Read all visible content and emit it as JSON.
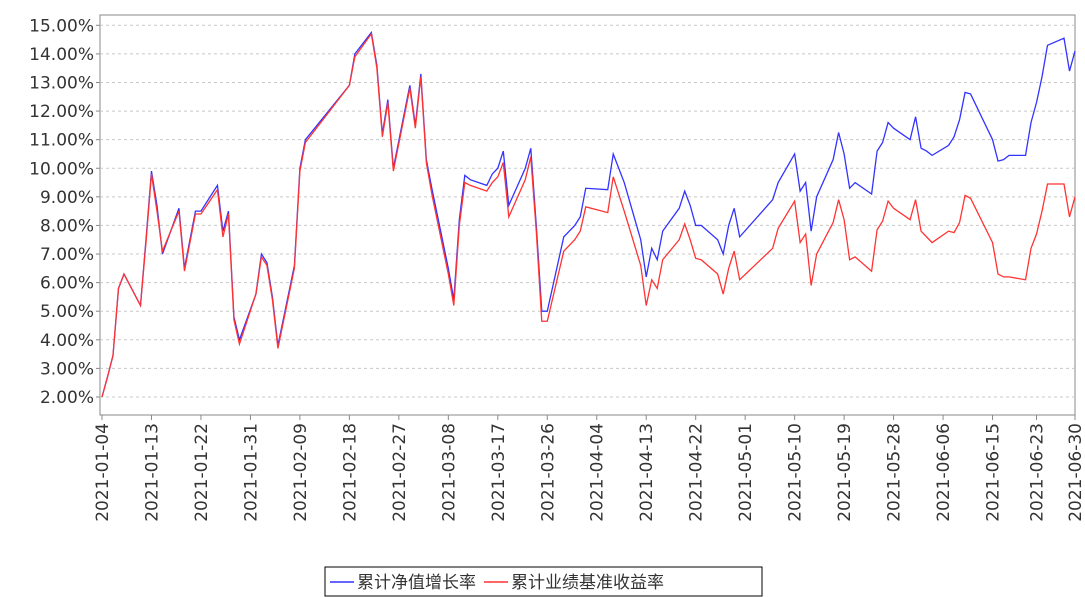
{
  "chart_data": {
    "type": "line",
    "x": [
      "2021-01-04",
      "2021-01-05",
      "2021-01-06",
      "2021-01-07",
      "2021-01-08",
      "2021-01-11",
      "2021-01-12",
      "2021-01-13",
      "2021-01-14",
      "2021-01-15",
      "2021-01-18",
      "2021-01-19",
      "2021-01-20",
      "2021-01-21",
      "2021-01-22",
      "2021-01-25",
      "2021-01-26",
      "2021-01-27",
      "2021-01-28",
      "2021-01-29",
      "2021-02-01",
      "2021-02-02",
      "2021-02-03",
      "2021-02-04",
      "2021-02-05",
      "2021-02-08",
      "2021-02-09",
      "2021-02-10",
      "2021-02-18",
      "2021-02-19",
      "2021-02-22",
      "2021-02-23",
      "2021-02-24",
      "2021-02-25",
      "2021-02-26",
      "2021-03-01",
      "2021-03-02",
      "2021-03-03",
      "2021-03-04",
      "2021-03-05",
      "2021-03-08",
      "2021-03-09",
      "2021-03-10",
      "2021-03-11",
      "2021-03-12",
      "2021-03-15",
      "2021-03-16",
      "2021-03-17",
      "2021-03-18",
      "2021-03-19",
      "2021-03-22",
      "2021-03-23",
      "2021-03-24",
      "2021-03-25",
      "2021-03-26",
      "2021-03-29",
      "2021-03-30",
      "2021-03-31",
      "2021-04-01",
      "2021-04-02",
      "2021-04-06",
      "2021-04-07",
      "2021-04-08",
      "2021-04-09",
      "2021-04-12",
      "2021-04-13",
      "2021-04-14",
      "2021-04-15",
      "2021-04-16",
      "2021-04-19",
      "2021-04-20",
      "2021-04-21",
      "2021-04-22",
      "2021-04-23",
      "2021-04-26",
      "2021-04-27",
      "2021-04-28",
      "2021-04-29",
      "2021-04-30",
      "2021-05-06",
      "2021-05-07",
      "2021-05-10",
      "2021-05-11",
      "2021-05-12",
      "2021-05-13",
      "2021-05-14",
      "2021-05-17",
      "2021-05-18",
      "2021-05-19",
      "2021-05-20",
      "2021-05-21",
      "2021-05-24",
      "2021-05-25",
      "2021-05-26",
      "2021-05-27",
      "2021-05-28",
      "2021-05-31",
      "2021-06-01",
      "2021-06-02",
      "2021-06-03",
      "2021-06-04",
      "2021-06-07",
      "2021-06-08",
      "2021-06-09",
      "2021-06-10",
      "2021-06-11",
      "2021-06-15",
      "2021-06-16",
      "2021-06-17",
      "2021-06-18",
      "2021-06-21",
      "2021-06-22",
      "2021-06-23",
      "2021-06-24",
      "2021-06-25",
      "2021-06-28",
      "2021-06-29",
      "2021-06-30"
    ],
    "series": [
      {
        "name": "累计净值增长率",
        "color": "#3333ff",
        "values": [
          2.0,
          2.7,
          3.45,
          5.8,
          6.3,
          5.2,
          7.5,
          9.9,
          8.7,
          7.0,
          8.6,
          6.5,
          7.5,
          8.5,
          8.5,
          9.4,
          7.8,
          8.5,
          4.8,
          4.0,
          5.6,
          7.0,
          6.7,
          5.5,
          3.8,
          6.6,
          10.0,
          11.0,
          12.9,
          14.0,
          14.75,
          13.6,
          11.2,
          12.4,
          10.0,
          12.9,
          11.5,
          13.3,
          10.3,
          9.3,
          6.5,
          5.4,
          8.2,
          9.75,
          9.6,
          9.4,
          9.8,
          10.0,
          10.6,
          8.7,
          10.0,
          10.7,
          8.0,
          5.0,
          5.0,
          7.6,
          7.8,
          8.0,
          8.3,
          9.3,
          9.25,
          10.5,
          10.0,
          9.5,
          7.5,
          6.2,
          7.2,
          6.8,
          7.8,
          8.6,
          9.2,
          8.7,
          8.0,
          8.0,
          7.5,
          7.0,
          8.0,
          8.6,
          7.6,
          8.9,
          9.5,
          10.5,
          9.2,
          9.5,
          7.8,
          9.0,
          10.3,
          11.25,
          10.5,
          9.3,
          9.5,
          9.1,
          10.6,
          10.9,
          11.6,
          11.4,
          11.0,
          11.8,
          10.7,
          10.6,
          10.45,
          10.8,
          11.1,
          11.7,
          12.65,
          12.6,
          11.0,
          10.25,
          10.3,
          10.45,
          10.45,
          11.6,
          12.3,
          13.2,
          14.3,
          14.55,
          13.4,
          14.1
        ]
      },
      {
        "name": "累计业绩基准收益率",
        "color": "#ff3333",
        "values": [
          2.0,
          2.7,
          3.45,
          5.8,
          6.3,
          5.2,
          7.4,
          9.8,
          8.5,
          7.1,
          8.5,
          6.4,
          7.4,
          8.4,
          8.4,
          9.25,
          7.6,
          8.4,
          4.7,
          3.85,
          5.6,
          6.9,
          6.6,
          5.4,
          3.7,
          6.5,
          9.9,
          10.9,
          12.9,
          13.9,
          14.7,
          13.5,
          11.1,
          12.3,
          9.9,
          12.8,
          11.4,
          13.2,
          10.2,
          9.1,
          6.3,
          5.2,
          8.0,
          9.5,
          9.4,
          9.2,
          9.5,
          9.7,
          10.2,
          8.3,
          9.6,
          10.4,
          7.8,
          4.65,
          4.65,
          7.1,
          7.3,
          7.5,
          7.8,
          8.65,
          8.45,
          9.7,
          9.1,
          8.5,
          6.6,
          5.2,
          6.1,
          5.8,
          6.8,
          7.5,
          8.05,
          7.5,
          6.85,
          6.8,
          6.3,
          5.6,
          6.5,
          7.1,
          6.1,
          7.2,
          7.9,
          8.85,
          7.4,
          7.7,
          5.9,
          7.0,
          8.1,
          8.9,
          8.2,
          6.8,
          6.9,
          6.4,
          7.85,
          8.15,
          8.85,
          8.6,
          8.2,
          8.9,
          7.8,
          7.6,
          7.4,
          7.8,
          7.75,
          8.1,
          9.05,
          8.95,
          7.4,
          6.3,
          6.2,
          6.2,
          6.1,
          7.2,
          7.7,
          8.5,
          9.45,
          9.45,
          8.3,
          9.0
        ]
      }
    ],
    "xlim": [
      "2021-01-04",
      "2021-06-30"
    ],
    "xticks": [
      "2021-01-04",
      "2021-01-13",
      "2021-01-22",
      "2021-01-31",
      "2021-02-09",
      "2021-02-18",
      "2021-02-27",
      "2021-03-08",
      "2021-03-17",
      "2021-03-26",
      "2021-04-04",
      "2021-04-13",
      "2021-04-22",
      "2021-05-01",
      "2021-05-10",
      "2021-05-19",
      "2021-05-28",
      "2021-06-06",
      "2021-06-15",
      "2021-06-23",
      "2021-06-30"
    ],
    "ylim": [
      1.37,
      15.36
    ],
    "yticks": [
      {
        "value": 2,
        "label": "2.00%"
      },
      {
        "value": 3,
        "label": "3.00%"
      },
      {
        "value": 4,
        "label": "4.00%"
      },
      {
        "value": 5,
        "label": "5.00%"
      },
      {
        "value": 6,
        "label": "6.00%"
      },
      {
        "value": 7,
        "label": "7.00%"
      },
      {
        "value": 8,
        "label": "8.00%"
      },
      {
        "value": 9,
        "label": "9.00%"
      },
      {
        "value": 10,
        "label": "10.00%"
      },
      {
        "value": 11,
        "label": "11.00%"
      },
      {
        "value": 12,
        "label": "12.00%"
      },
      {
        "value": 13,
        "label": "13.00%"
      },
      {
        "value": 14,
        "label": "14.00%"
      },
      {
        "value": 15,
        "label": "15.00%"
      }
    ],
    "grid": true
  }
}
